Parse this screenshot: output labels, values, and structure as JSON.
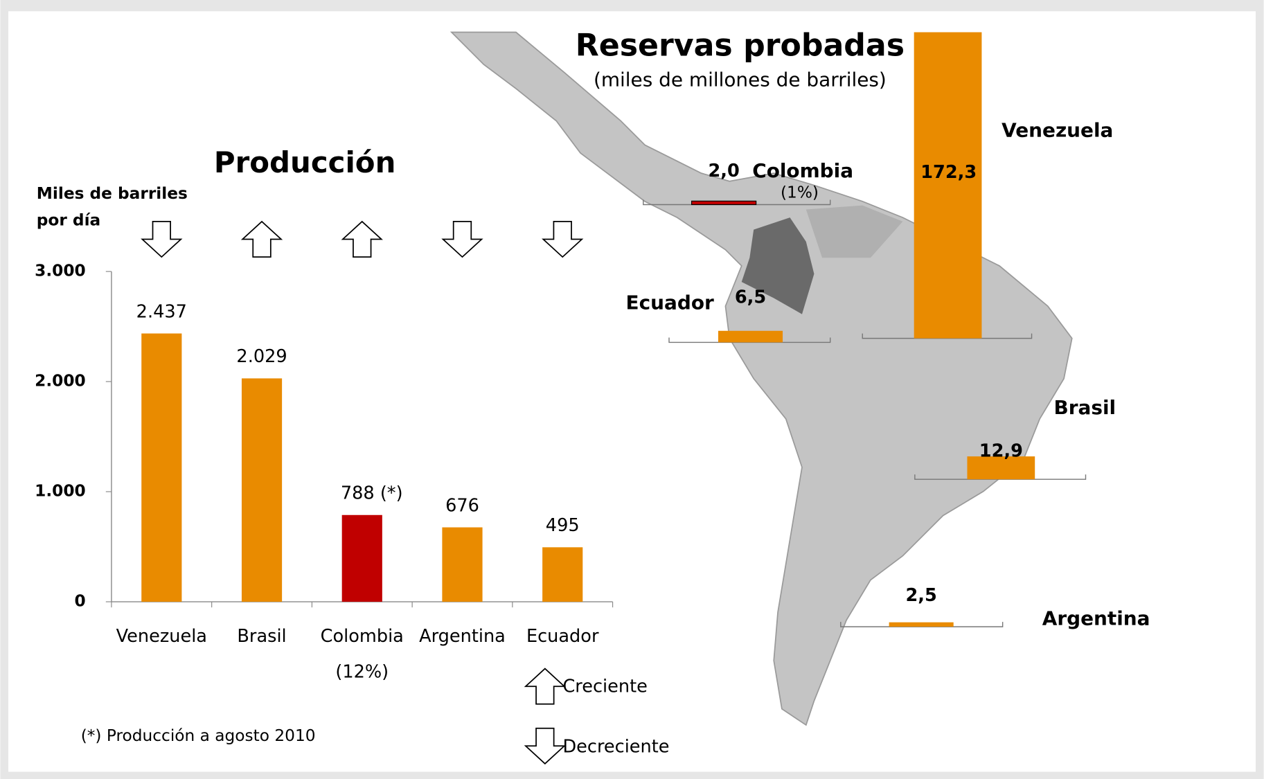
{
  "chart_data": [
    {
      "type": "bar",
      "title": "Producción",
      "y_label": [
        "Miles de barriles",
        "por día"
      ],
      "categories": [
        "Venezuela",
        "Brasil",
        "Colombia",
        "Argentina",
        "Ecuador"
      ],
      "sublabels": [
        null,
        null,
        "(12%)",
        null,
        null
      ],
      "values": [
        2437,
        2029,
        788,
        676,
        495
      ],
      "value_labels": [
        "2.437",
        "2.029",
        "788 (*)",
        "676",
        "495"
      ],
      "colors": [
        "#e98b00",
        "#e98b00",
        "#c00000",
        "#e98b00",
        "#e98b00"
      ],
      "trends": [
        "down",
        "up",
        "up",
        "down",
        "down"
      ],
      "ylim": [
        0,
        3000
      ],
      "yticks": [
        {
          "value": 0,
          "label": "0"
        },
        {
          "value": 1000,
          "label": "1.000"
        },
        {
          "value": 2000,
          "label": "2.000"
        },
        {
          "value": 3000,
          "label": "3.000"
        }
      ],
      "legend": {
        "up": "Creciente",
        "down": "Decreciente"
      },
      "footnote": "(*) Producción a agosto 2010"
    },
    {
      "type": "map-bar",
      "title": "Reservas probadas",
      "subtitle": "(miles de millones de barriles)",
      "categories": [
        "Venezuela",
        "Brasil",
        "Colombia",
        "Ecuador",
        "Argentina"
      ],
      "values": [
        172.3,
        12.9,
        2.0,
        6.5,
        2.5
      ],
      "value_labels": [
        "172,3",
        "12,9",
        "2,0",
        "6,5",
        "2,5"
      ],
      "colors": [
        "#e98b00",
        "#e98b00",
        "#c00000",
        "#e98b00",
        "#e98b00"
      ],
      "sublabels": [
        null,
        null,
        "(1%)",
        null,
        null
      ]
    }
  ]
}
